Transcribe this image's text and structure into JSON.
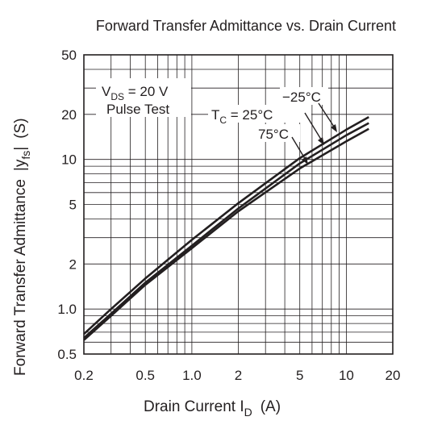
{
  "chart_data": {
    "type": "line",
    "title": "Forward Transfer Admittance vs. Drain Current",
    "xlabel": {
      "main": "Drain Current  I",
      "sub": "D",
      "unit": "(A)"
    },
    "ylabel": {
      "main": "Forward Transfer Admittance",
      "abs": "y",
      "sub": "fs",
      "unit": "(S)"
    },
    "x_scale": "log",
    "y_scale": "log",
    "xlim": [
      0.2,
      20
    ],
    "ylim": [
      0.5,
      50
    ],
    "grid": true,
    "x_ticks": [
      0.2,
      0.5,
      1.0,
      2,
      5,
      10,
      20
    ],
    "x_tick_labels": [
      "0.2",
      "0.5",
      "1.0",
      "2",
      "5",
      "10",
      "20"
    ],
    "y_ticks": [
      0.5,
      1.0,
      2,
      5,
      10,
      20,
      50
    ],
    "y_tick_labels": [
      "0.5",
      "1.0",
      "2",
      "5",
      "10",
      "20",
      "50"
    ],
    "conditions": {
      "vds": {
        "main": "V",
        "sub": "DS",
        "rest": " = 20 V"
      },
      "pulse": "Pulse Test"
    },
    "series": [
      {
        "name": "−25°C",
        "x": [
          0.2,
          0.3,
          0.5,
          1.0,
          2,
          5,
          10,
          14
        ],
        "y": [
          0.68,
          1.0,
          1.6,
          2.9,
          5.1,
          10.2,
          15.8,
          19.2
        ]
      },
      {
        "name": "T_C = 25°C",
        "x": [
          0.2,
          0.3,
          0.5,
          1.0,
          2,
          5,
          10,
          14
        ],
        "y": [
          0.64,
          0.93,
          1.5,
          2.65,
          4.7,
          9.4,
          14.5,
          17.5
        ]
      },
      {
        "name": "75°C",
        "x": [
          0.2,
          0.3,
          0.5,
          1.0,
          2,
          5,
          10,
          14
        ],
        "y": [
          0.62,
          0.9,
          1.45,
          2.55,
          4.5,
          8.7,
          13.2,
          16.0
        ]
      }
    ],
    "annotations": {
      "tc_label": {
        "main": "T",
        "sub": "C",
        "rest": " = 25°C"
      },
      "m25_label": "−25°C",
      "p75_label": "75°C"
    }
  }
}
